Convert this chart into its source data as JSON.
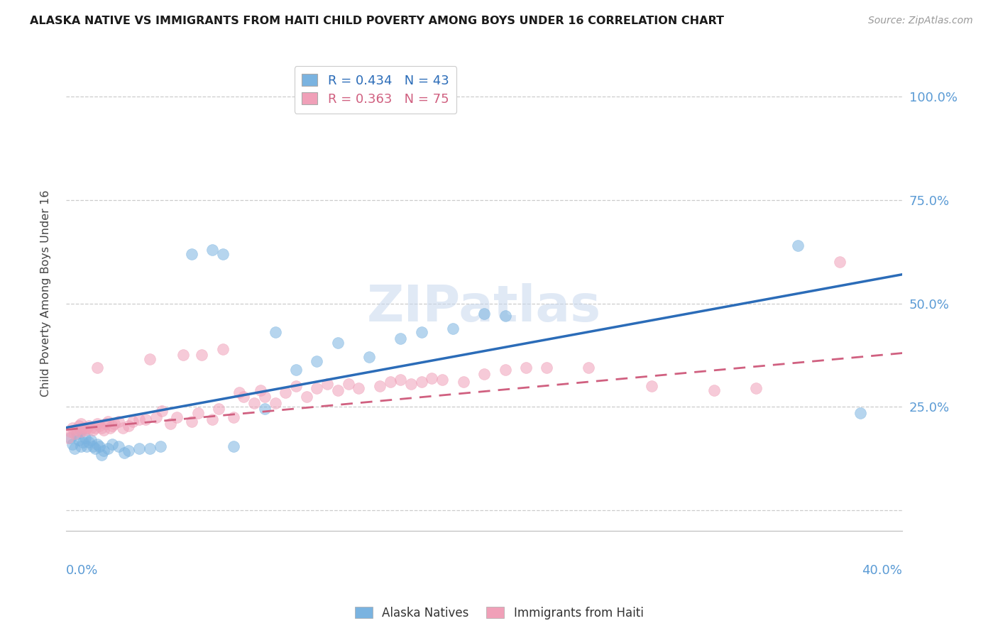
{
  "title": "ALASKA NATIVE VS IMMIGRANTS FROM HAITI CHILD POVERTY AMONG BOYS UNDER 16 CORRELATION CHART",
  "source": "Source: ZipAtlas.com",
  "ylabel": "Child Poverty Among Boys Under 16",
  "yticks": [
    0.0,
    0.25,
    0.5,
    0.75,
    1.0
  ],
  "ytick_labels": [
    "",
    "25.0%",
    "50.0%",
    "75.0%",
    "100.0%"
  ],
  "xlim": [
    0.0,
    0.4
  ],
  "ylim": [
    -0.05,
    1.1
  ],
  "legend_r1": "R = 0.434   N = 43",
  "legend_r2": "R = 0.363   N = 75",
  "color_blue": "#7ab3e0",
  "color_pink": "#f0a0b8",
  "color_blue_line": "#2b6cb8",
  "color_pink_line": "#d06080",
  "color_right_labels": "#5b9bd5",
  "watermark": "ZIPatlas",
  "alaska_x": [
    0.002,
    0.003,
    0.004,
    0.005,
    0.006,
    0.007,
    0.007,
    0.008,
    0.009,
    0.01,
    0.011,
    0.012,
    0.013,
    0.014,
    0.015,
    0.016,
    0.017,
    0.018,
    0.02,
    0.022,
    0.025,
    0.028,
    0.03,
    0.035,
    0.04,
    0.045,
    0.06,
    0.07,
    0.075,
    0.08,
    0.095,
    0.1,
    0.11,
    0.12,
    0.13,
    0.145,
    0.16,
    0.17,
    0.185,
    0.2,
    0.21,
    0.35,
    0.38
  ],
  "alaska_y": [
    0.175,
    0.16,
    0.15,
    0.185,
    0.17,
    0.155,
    0.195,
    0.165,
    0.175,
    0.155,
    0.165,
    0.17,
    0.155,
    0.15,
    0.16,
    0.155,
    0.135,
    0.145,
    0.15,
    0.16,
    0.155,
    0.14,
    0.145,
    0.15,
    0.15,
    0.155,
    0.62,
    0.63,
    0.62,
    0.155,
    0.245,
    0.43,
    0.34,
    0.36,
    0.405,
    0.37,
    0.415,
    0.43,
    0.44,
    0.475,
    0.47,
    0.64,
    0.235
  ],
  "haiti_x": [
    0.001,
    0.002,
    0.003,
    0.004,
    0.005,
    0.006,
    0.007,
    0.007,
    0.008,
    0.009,
    0.01,
    0.011,
    0.012,
    0.013,
    0.014,
    0.015,
    0.015,
    0.016,
    0.017,
    0.018,
    0.019,
    0.02,
    0.021,
    0.022,
    0.023,
    0.025,
    0.027,
    0.03,
    0.032,
    0.035,
    0.038,
    0.04,
    0.043,
    0.046,
    0.05,
    0.053,
    0.056,
    0.06,
    0.063,
    0.065,
    0.07,
    0.073,
    0.075,
    0.08,
    0.083,
    0.085,
    0.09,
    0.093,
    0.095,
    0.1,
    0.105,
    0.11,
    0.115,
    0.12,
    0.125,
    0.13,
    0.135,
    0.14,
    0.15,
    0.155,
    0.16,
    0.165,
    0.17,
    0.175,
    0.18,
    0.19,
    0.2,
    0.21,
    0.22,
    0.23,
    0.25,
    0.28,
    0.31,
    0.33,
    0.37
  ],
  "haiti_y": [
    0.175,
    0.19,
    0.2,
    0.185,
    0.195,
    0.205,
    0.21,
    0.19,
    0.2,
    0.195,
    0.2,
    0.205,
    0.2,
    0.195,
    0.2,
    0.21,
    0.345,
    0.205,
    0.2,
    0.195,
    0.21,
    0.215,
    0.2,
    0.205,
    0.21,
    0.215,
    0.2,
    0.205,
    0.215,
    0.22,
    0.22,
    0.365,
    0.225,
    0.24,
    0.21,
    0.225,
    0.375,
    0.215,
    0.235,
    0.375,
    0.22,
    0.245,
    0.39,
    0.225,
    0.285,
    0.275,
    0.26,
    0.29,
    0.275,
    0.26,
    0.285,
    0.3,
    0.275,
    0.295,
    0.305,
    0.29,
    0.305,
    0.295,
    0.3,
    0.31,
    0.315,
    0.305,
    0.31,
    0.32,
    0.315,
    0.31,
    0.33,
    0.34,
    0.345,
    0.345,
    0.345,
    0.3,
    0.29,
    0.295,
    0.6
  ]
}
